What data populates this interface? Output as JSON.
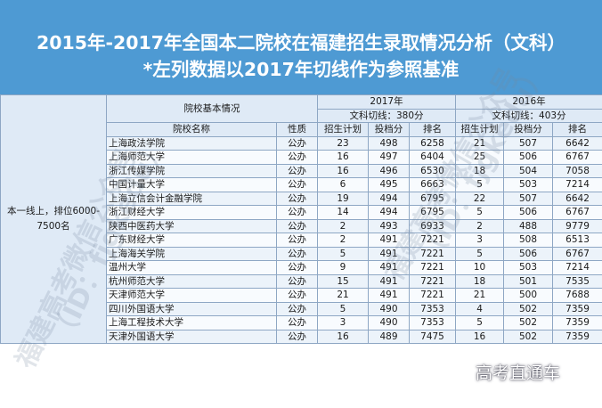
{
  "title": {
    "line1": "2015年-2017年全国本二院校在福建招生录取情况分析（文科）",
    "line2": "*左列数据以2017年切线作为参照基准"
  },
  "header": {
    "y2017": "2017年",
    "y2016": "2016年",
    "basic_info": "院校基本情况",
    "cut2017": "文科切线：380分",
    "cut2016": "文科切线：403分",
    "col_name": "院校名称",
    "col_type": "性质",
    "col_plan": "招生计划",
    "col_score": "投档分",
    "col_rank": "排名"
  },
  "row_label": "本一线上，排位6000-7500名",
  "rows": [
    {
      "name": "上海政法学院",
      "type": "公办",
      "p17": "23",
      "s17": "498",
      "r17": "6258",
      "p16": "21",
      "s16": "507",
      "r16": "6642"
    },
    {
      "name": "上海师范大学",
      "type": "公办",
      "p17": "16",
      "s17": "497",
      "r17": "6404",
      "p16": "25",
      "s16": "506",
      "r16": "6767"
    },
    {
      "name": "浙江传媒学院",
      "type": "公办",
      "p17": "16",
      "s17": "496",
      "r17": "6530",
      "p16": "18",
      "s16": "504",
      "r16": "7058"
    },
    {
      "name": "中国计量大学",
      "type": "公办",
      "p17": "6",
      "s17": "495",
      "r17": "6663",
      "p16": "5",
      "s16": "503",
      "r16": "7214"
    },
    {
      "name": "上海立信会计金融学院",
      "type": "公办",
      "p17": "19",
      "s17": "494",
      "r17": "6795",
      "p16": "22",
      "s16": "507",
      "r16": "6642"
    },
    {
      "name": "浙江财经大学",
      "type": "公办",
      "p17": "14",
      "s17": "494",
      "r17": "6795",
      "p16": "5",
      "s16": "506",
      "r16": "6767"
    },
    {
      "name": "陕西中医药大学",
      "type": "公办",
      "p17": "2",
      "s17": "493",
      "r17": "6933",
      "p16": "2",
      "s16": "488",
      "r16": "9779"
    },
    {
      "name": "广东财经大学",
      "type": "公办",
      "p17": "2",
      "s17": "491",
      "r17": "7221",
      "p16": "3",
      "s16": "508",
      "r16": "6513"
    },
    {
      "name": "上海海关学院",
      "type": "公办",
      "p17": "5",
      "s17": "491",
      "r17": "7221",
      "p16": "5",
      "s16": "506",
      "r16": "6767"
    },
    {
      "name": "温州大学",
      "type": "公办",
      "p17": "9",
      "s17": "491",
      "r17": "7221",
      "p16": "10",
      "s16": "503",
      "r16": "7214"
    },
    {
      "name": "杭州师范大学",
      "type": "公办",
      "p17": "15",
      "s17": "491",
      "r17": "7221",
      "p16": "18",
      "s16": "501",
      "r16": "7535"
    },
    {
      "name": "天津师范大学",
      "type": "公办",
      "p17": "21",
      "s17": "491",
      "r17": "7221",
      "p16": "21",
      "s16": "500",
      "r16": "7688"
    },
    {
      "name": "四川外国语大学",
      "type": "公办",
      "p17": "5",
      "s17": "490",
      "r17": "7353",
      "p16": "4",
      "s16": "502",
      "r16": "7359"
    },
    {
      "name": "上海工程技术大学",
      "type": "公办",
      "p17": "3",
      "s17": "490",
      "r17": "7353",
      "p16": "5",
      "s16": "502",
      "r16": "7359"
    },
    {
      "name": "天津外国语大学",
      "type": "公办",
      "p17": "16",
      "s17": "489",
      "r17": "7475",
      "p16": "16",
      "s16": "502",
      "r16": "7359"
    }
  ],
  "watermarks": {
    "wm1": "福建高考微信公众号",
    "wm2": "（ID：fjgkedu）"
  },
  "logo": "高考直通车"
}
